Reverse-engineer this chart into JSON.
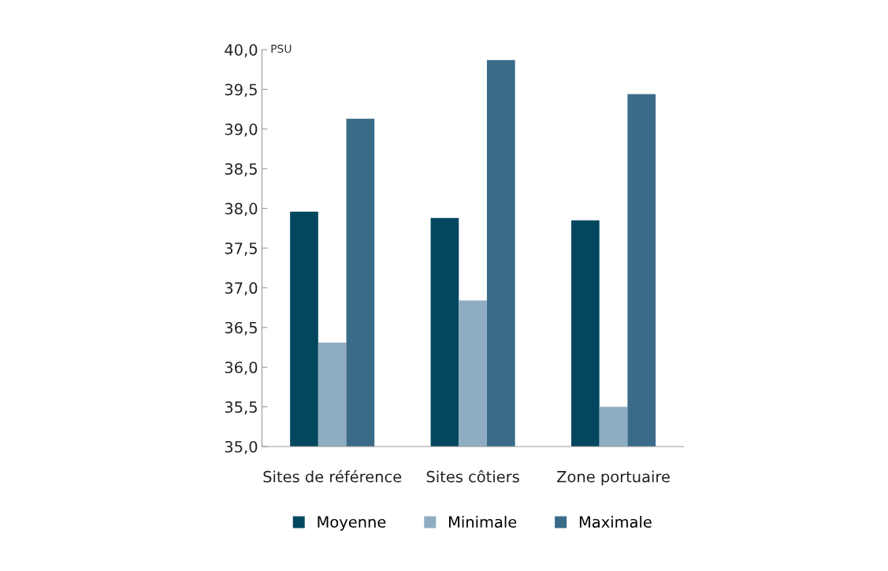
{
  "chart_data": {
    "type": "bar",
    "ylabel": "PSU",
    "categories": [
      "Sites de référence",
      "Sites côtiers",
      "Zone portuaire"
    ],
    "series": [
      {
        "name": "Moyenne",
        "color": "#03475f",
        "values": [
          37.96,
          37.88,
          37.85
        ]
      },
      {
        "name": "Minimale",
        "color": "#8fadc2",
        "values": [
          36.31,
          36.84,
          35.5
        ]
      },
      {
        "name": "Maximale",
        "color": "#3a6b88",
        "values": [
          39.13,
          39.87,
          39.44
        ]
      }
    ],
    "ylim": [
      35,
      40
    ],
    "yticks": [
      {
        "value": 35,
        "label": "35,0"
      },
      {
        "value": 35.5,
        "label": "35,5"
      },
      {
        "value": 36,
        "label": "36,0"
      },
      {
        "value": 36.5,
        "label": "36,5"
      },
      {
        "value": 37,
        "label": "37,0"
      },
      {
        "value": 37.5,
        "label": "37,5"
      },
      {
        "value": 38,
        "label": "38,0"
      },
      {
        "value": 38.5,
        "label": "38,5"
      },
      {
        "value": 39,
        "label": "39,0"
      },
      {
        "value": 39.5,
        "label": "39,5"
      },
      {
        "value": 40,
        "label": "40,0"
      }
    ],
    "grid": false,
    "legend": "bottom"
  }
}
